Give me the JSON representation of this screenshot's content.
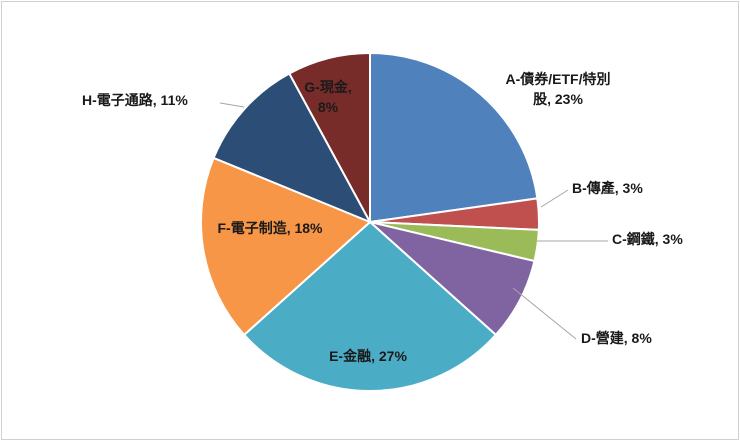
{
  "chart_data": {
    "type": "pie",
    "slices": [
      {
        "label_lines": [
          "A-債券/ETF/特別",
          "股, 23%"
        ],
        "value": 23,
        "color": "#4f81bd"
      },
      {
        "label_lines": [
          "B-傳產, 3%"
        ],
        "value": 3,
        "color": "#c0504d"
      },
      {
        "label_lines": [
          "C-鋼鐵, 3%"
        ],
        "value": 3,
        "color": "#9bbb59"
      },
      {
        "label_lines": [
          "D-營建, 8%"
        ],
        "value": 8,
        "color": "#8064a2"
      },
      {
        "label_lines": [
          "E-金融, 27%"
        ],
        "value": 27,
        "color": "#4bacc6"
      },
      {
        "label_lines": [
          "F-電子制造, 18%"
        ],
        "value": 18,
        "color": "#f79646"
      },
      {
        "label_lines": [
          "H-電子通路, 11%"
        ],
        "value": 11,
        "color": "#2c4d75"
      },
      {
        "label_lines": [
          "G-現金,",
          "8%"
        ],
        "value": 8,
        "color": "#772c2a"
      }
    ]
  }
}
